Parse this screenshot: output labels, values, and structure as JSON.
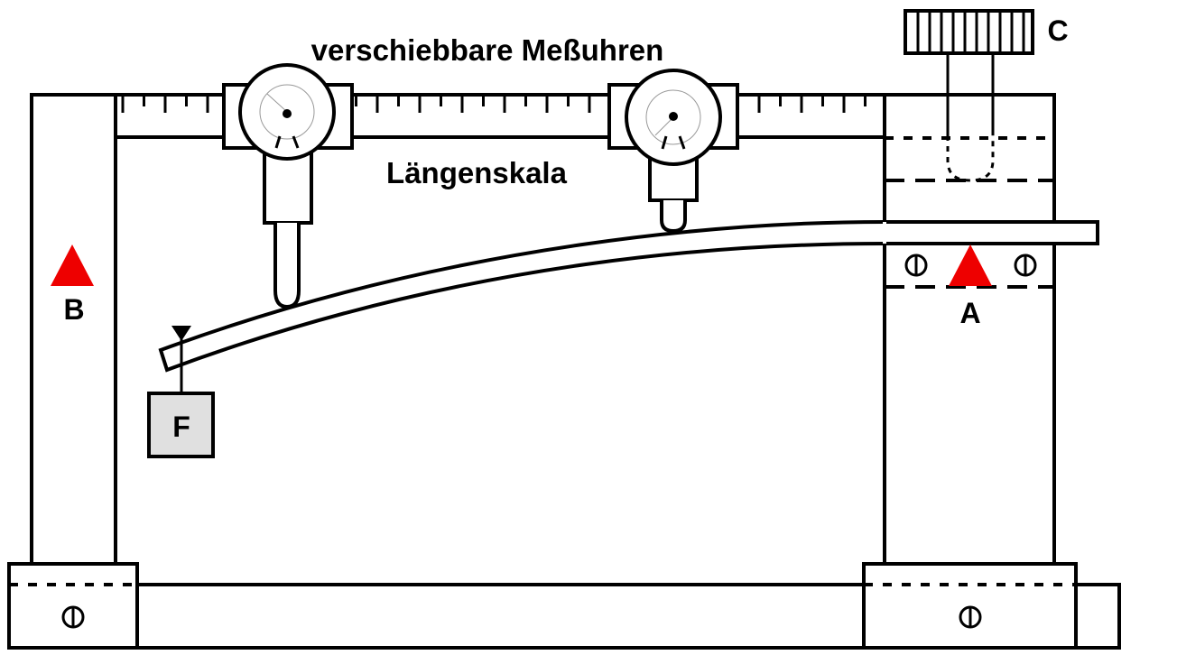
{
  "labels": {
    "dial_gauges": "verschiebbare Meßuhren",
    "length_scale": "Längenskala",
    "point_a": "A",
    "point_b": "B",
    "point_c": "C",
    "force": "F"
  },
  "colors": {
    "stroke": "#000000",
    "marker": "#ee0000",
    "weight_fill": "#e0e0e0"
  },
  "icons": {
    "marker": "triangle-marker-icon",
    "screw": "screw-icon",
    "knob": "knurled-knob-icon",
    "load_arrow": "down-triangle-icon"
  }
}
